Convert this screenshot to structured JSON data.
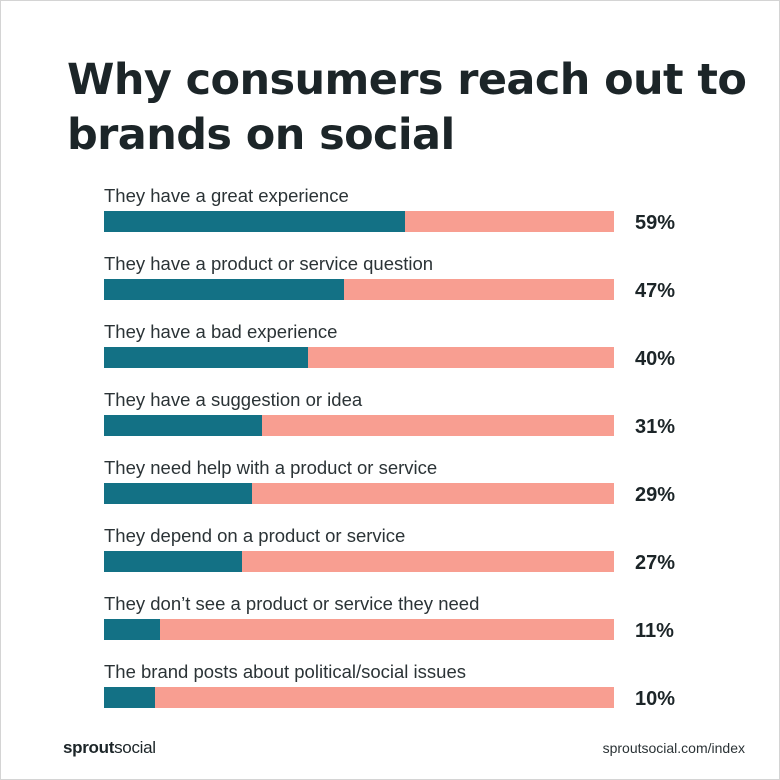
{
  "title": "Why consumers reach out to brands on social",
  "colors": {
    "bar_fill": "#137185",
    "bar_track": "#f89e91",
    "text": "#1c2528"
  },
  "chart_data": {
    "type": "bar",
    "orientation": "horizontal",
    "title": "Why consumers reach out to brands on social",
    "xlim": [
      0,
      100
    ],
    "grid": false,
    "legend": "none",
    "categories": [
      "They have a great experience",
      "They have a product or service question",
      "They have a bad experience",
      "They have a suggestion or idea",
      "They need help with a product or service",
      "They depend on a product or service",
      "They don’t see a product or service they need",
      "The brand posts about political/social issues"
    ],
    "values": [
      59,
      47,
      40,
      31,
      29,
      27,
      11,
      10
    ],
    "value_labels": [
      "59%",
      "47%",
      "40%",
      "31%",
      "29%",
      "27%",
      "11%",
      "10%"
    ]
  },
  "footer": {
    "logo_bold": "sprout",
    "logo_regular": "social",
    "url": "sproutsocial.com/index"
  }
}
